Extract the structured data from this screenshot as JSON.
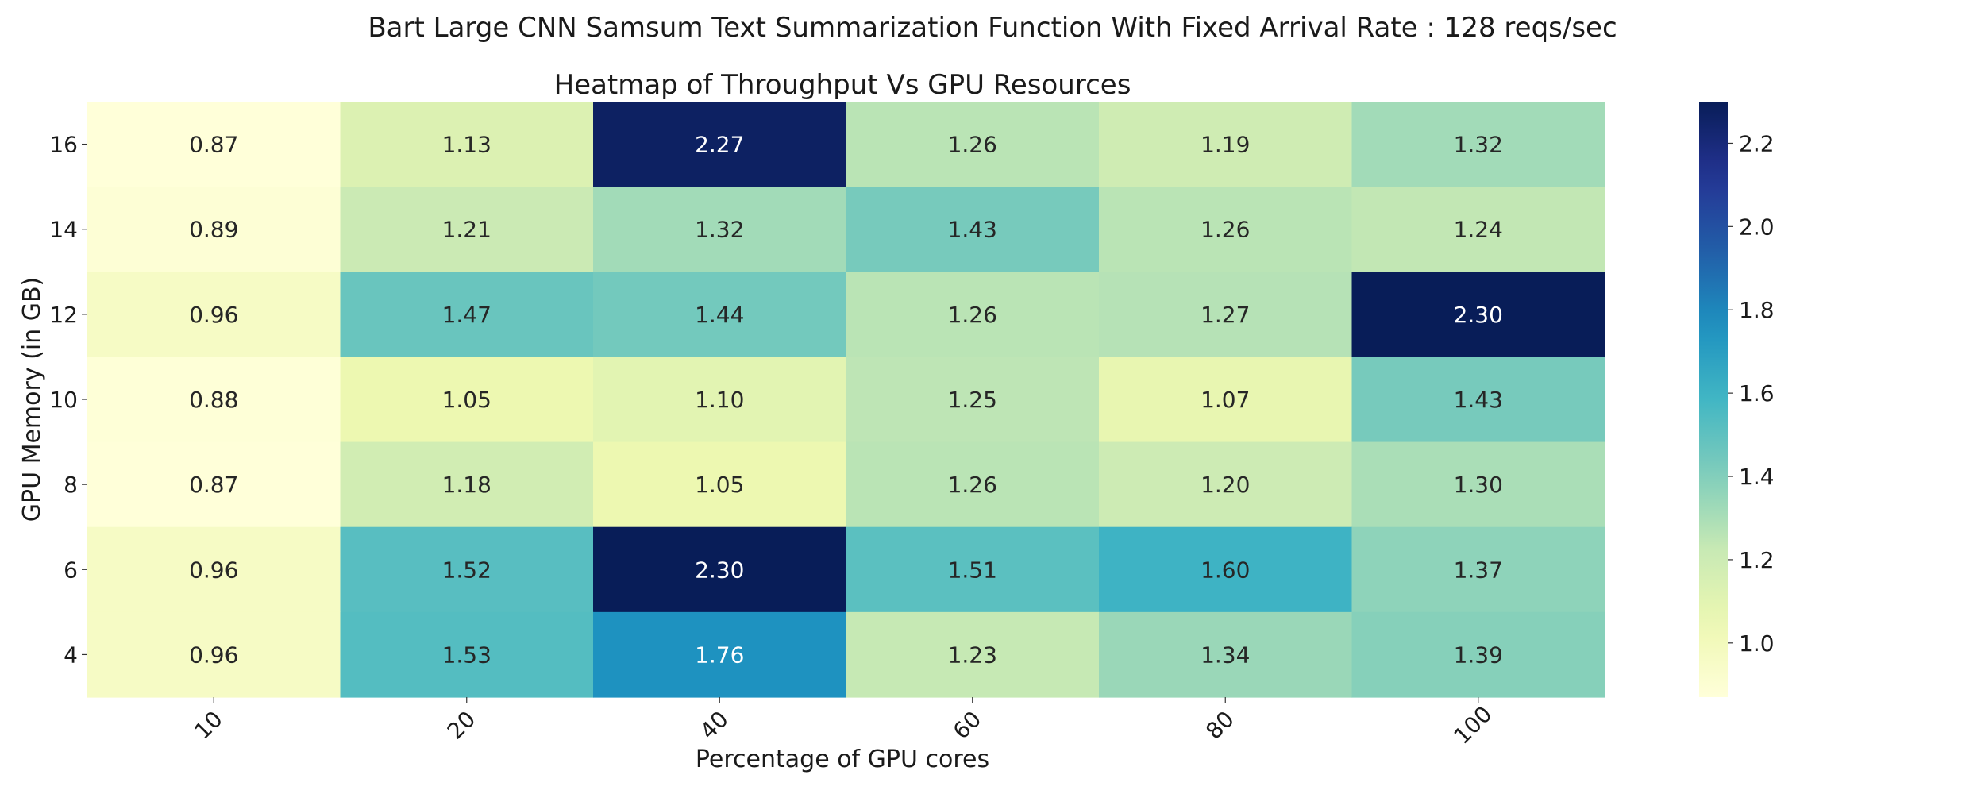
{
  "chart_data": {
    "type": "heatmap",
    "suptitle": "Bart Large CNN Samsum Text Summarization Function With Fixed Arrival Rate : 128 reqs/sec",
    "title": "Heatmap of Throughput Vs GPU Resources",
    "xlabel": "Percentage of GPU cores",
    "ylabel": "GPU Memory (in GB)",
    "x_categories": [
      "10",
      "20",
      "40",
      "60",
      "80",
      "100"
    ],
    "y_categories": [
      "16",
      "14",
      "12",
      "10",
      "8",
      "6",
      "4"
    ],
    "values": [
      [
        0.87,
        1.13,
        2.27,
        1.26,
        1.19,
        1.32
      ],
      [
        0.89,
        1.21,
        1.32,
        1.43,
        1.26,
        1.24
      ],
      [
        0.96,
        1.47,
        1.44,
        1.26,
        1.27,
        2.3
      ],
      [
        0.88,
        1.05,
        1.1,
        1.25,
        1.07,
        1.43
      ],
      [
        0.87,
        1.18,
        1.05,
        1.26,
        1.2,
        1.3
      ],
      [
        0.96,
        1.52,
        2.3,
        1.51,
        1.6,
        1.37
      ],
      [
        0.96,
        1.53,
        1.76,
        1.23,
        1.34,
        1.39
      ]
    ],
    "value_labels": [
      [
        "0.87",
        "1.13",
        "2.27",
        "1.26",
        "1.19",
        "1.32"
      ],
      [
        "0.89",
        "1.21",
        "1.32",
        "1.43",
        "1.26",
        "1.24"
      ],
      [
        "0.96",
        "1.47",
        "1.44",
        "1.26",
        "1.27",
        "2.30"
      ],
      [
        "0.88",
        "1.05",
        "1.10",
        "1.25",
        "1.07",
        "1.43"
      ],
      [
        "0.87",
        "1.18",
        "1.05",
        "1.26",
        "1.20",
        "1.30"
      ],
      [
        "0.96",
        "1.52",
        "2.30",
        "1.51",
        "1.60",
        "1.37"
      ],
      [
        "0.96",
        "1.53",
        "1.76",
        "1.23",
        "1.34",
        "1.39"
      ]
    ],
    "colormap": "YlGnBu",
    "vmin": 0.87,
    "vmax": 2.3,
    "colorbar_ticks": [
      1.0,
      1.2,
      1.4,
      1.6,
      1.8,
      2.0,
      2.2
    ],
    "colorbar_tick_labels": [
      "1.0",
      "1.2",
      "1.4",
      "1.6",
      "1.8",
      "2.0",
      "2.2"
    ],
    "colors": {
      "text_dark": "#262626",
      "text_light": "#ffffff"
    }
  }
}
